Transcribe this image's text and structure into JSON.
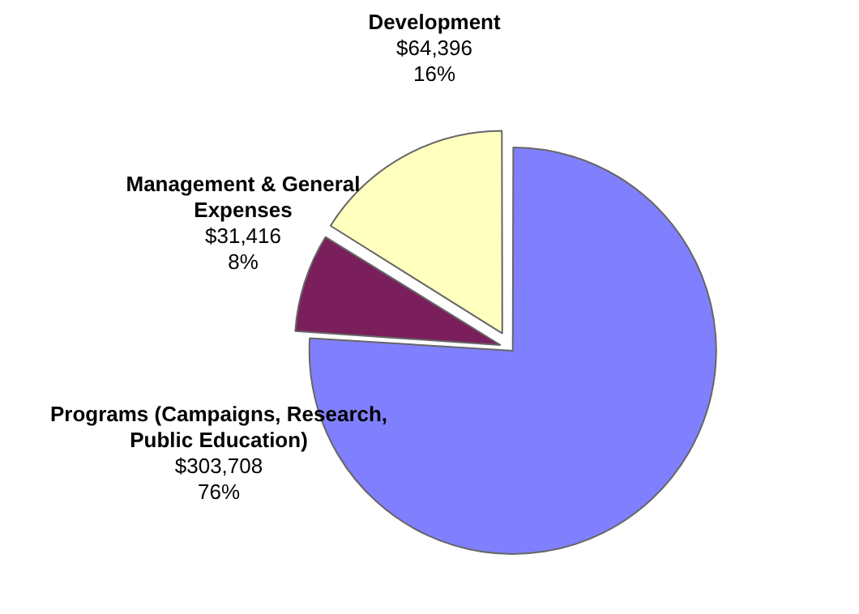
{
  "chart_data": {
    "type": "pie",
    "categories": [
      "Programs (Campaigns, Research, Public Education)",
      "Management & General Expenses",
      "Development"
    ],
    "values": [
      303708,
      31416,
      64396
    ],
    "colors": [
      "#8080ff",
      "#7a1f5c",
      "#ffffc0"
    ],
    "value_labels": [
      "$303,708\n76%",
      "$31,416\n8%",
      "$64,396\n16%"
    ],
    "legend": false
  }
}
